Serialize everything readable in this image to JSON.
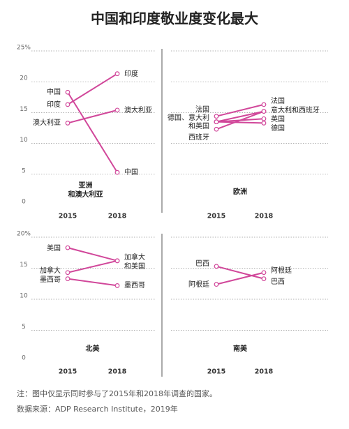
{
  "title": "中国和印度敬业度变化最大",
  "note": "注：图中仅显示同时参与了2015年和2018年调查的国家。",
  "source": "数据来源：ADP Research Institute，2019年",
  "chart_data": [
    {
      "type": "slope",
      "title": [
        "亚洲",
        "和澳大利亚"
      ],
      "categories": [
        "2015",
        "2018"
      ],
      "color": "#d1479a",
      "ylim": [
        0,
        25
      ],
      "yticks": [
        0,
        5,
        10,
        15,
        20,
        {
          "value": 25,
          "label": "25%"
        }
      ],
      "tick_labels": true,
      "grid": true,
      "series": [
        {
          "values": [
            18.3,
            5.3
          ]
        },
        {
          "values": [
            16.3,
            21.3
          ]
        },
        {
          "values": [
            13.3,
            15.4
          ]
        }
      ],
      "start_labels": [
        "中国",
        "印度",
        "澳大利亚"
      ],
      "end_labels": [
        "印度",
        "澳大利亚",
        "中国"
      ]
    },
    {
      "type": "slope",
      "title": [
        "欧洲"
      ],
      "categories": [
        "2015",
        "2018"
      ],
      "color": "#d1479a",
      "ylim": [
        0,
        25
      ],
      "yticks": [
        0,
        5,
        10,
        15,
        20,
        25
      ],
      "tick_labels": false,
      "grid": true,
      "series": [
        {
          "values": [
            14.4,
            16.3
          ]
        },
        {
          "values": [
            13.5,
            13.3
          ]
        },
        {
          "values": [
            13.5,
            15.2
          ]
        },
        {
          "values": [
            13.5,
            14.0
          ]
        },
        {
          "values": [
            12.3,
            15.2
          ]
        }
      ],
      "start_labels": [
        "法国",
        "德国、意大利",
        "和英国",
        "西班牙"
      ],
      "end_labels": [
        "法国",
        "意大利和西班牙",
        "英国",
        "德国"
      ]
    },
    {
      "type": "slope",
      "title": [
        "北美"
      ],
      "categories": [
        "2015",
        "2018"
      ],
      "color": "#d1479a",
      "ylim": [
        0,
        20
      ],
      "yticks": [
        0,
        5,
        10,
        15,
        {
          "value": 20,
          "label": "20%"
        }
      ],
      "tick_labels": true,
      "grid": true,
      "series": [
        {
          "values": [
            18.3,
            16.2
          ]
        },
        {
          "values": [
            14.3,
            16.2
          ]
        },
        {
          "values": [
            13.3,
            12.2
          ]
        }
      ],
      "start_labels": [
        "美国",
        "加拿大",
        "墨西哥"
      ],
      "end_labels": [
        "加拿大",
        "和美国",
        "墨西哥"
      ]
    },
    {
      "type": "slope",
      "title": [
        "南美"
      ],
      "categories": [
        "2015",
        "2018"
      ],
      "color": "#d1479a",
      "ylim": [
        0,
        20
      ],
      "yticks": [
        0,
        5,
        10,
        15,
        20
      ],
      "tick_labels": false,
      "grid": true,
      "series": [
        {
          "values": [
            15.3,
            13.3
          ]
        },
        {
          "values": [
            12.4,
            14.3
          ]
        }
      ],
      "start_labels": [
        "巴西",
        "阿根廷"
      ],
      "end_labels": [
        "阿根廷",
        "巴西"
      ]
    }
  ]
}
